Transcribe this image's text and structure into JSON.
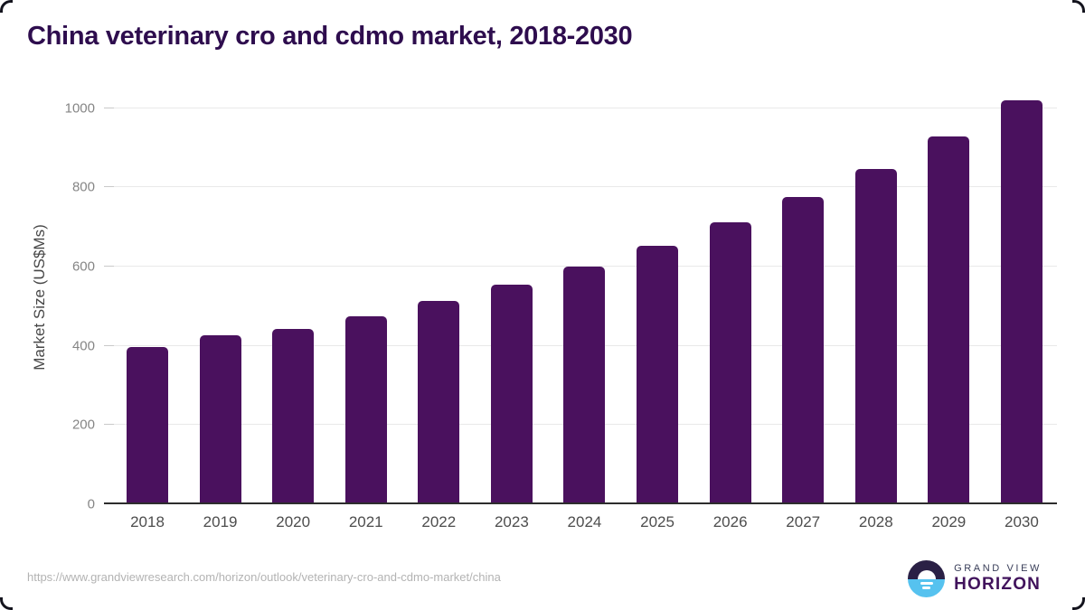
{
  "title": "China veterinary cro and cdmo market, 2018-2030",
  "chart_data": {
    "type": "bar",
    "title": "China veterinary cro and cdmo market, 2018-2030",
    "categories": [
      "2018",
      "2019",
      "2020",
      "2021",
      "2022",
      "2023",
      "2024",
      "2025",
      "2026",
      "2027",
      "2028",
      "2029",
      "2030"
    ],
    "values": [
      393,
      421,
      438,
      471,
      508,
      550,
      596,
      648,
      707,
      771,
      843,
      925,
      1015
    ],
    "xlabel": "",
    "ylabel": "Market Size (US$Ms)",
    "yticks": [
      0,
      200,
      400,
      600,
      800,
      1000
    ],
    "ylim": [
      0,
      1000
    ],
    "grid": true,
    "legend": "none"
  },
  "colors": {
    "bar": "#4a115e",
    "title": "#2e0d4e",
    "axis_line": "#2d2d2d",
    "gridline": "#e9e9e9",
    "logo_dark": "#2a2045",
    "logo_blue": "#56c2ef"
  },
  "footer": {
    "source_url": "https://www.grandviewresearch.com/horizon/outlook/veterinary-cro-and-cdmo-market/china",
    "logo_line1": "GRAND VIEW",
    "logo_line2": "HORIZON"
  }
}
